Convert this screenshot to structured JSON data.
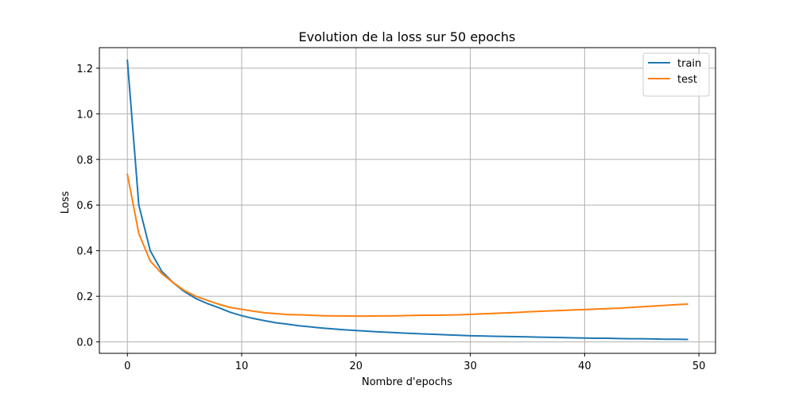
{
  "chart_data": {
    "type": "line",
    "title": "Evolution de la loss sur 50 epochs",
    "xlabel": "Nombre d'epochs",
    "ylabel": "Loss",
    "xlim": [
      -2.45,
      51.45
    ],
    "ylim": [
      -0.05,
      1.29
    ],
    "xticks": [
      0,
      10,
      20,
      30,
      40,
      50
    ],
    "yticks": [
      0.0,
      0.2,
      0.4,
      0.6,
      0.8,
      1.0,
      1.2
    ],
    "xtick_labels": [
      "0",
      "10",
      "20",
      "30",
      "40",
      "50"
    ],
    "ytick_labels": [
      "0.0",
      "0.2",
      "0.4",
      "0.6",
      "0.8",
      "1.0",
      "1.2"
    ],
    "grid": true,
    "legend_position": "top-right",
    "x": [
      0,
      1,
      2,
      3,
      4,
      5,
      6,
      7,
      8,
      9,
      10,
      11,
      12,
      13,
      14,
      15,
      16,
      17,
      18,
      19,
      20,
      21,
      22,
      23,
      24,
      25,
      26,
      27,
      28,
      29,
      30,
      31,
      32,
      33,
      34,
      35,
      36,
      37,
      38,
      39,
      40,
      41,
      42,
      43,
      44,
      45,
      46,
      47,
      48,
      49
    ],
    "series": [
      {
        "name": "train",
        "color": "#1f77b4",
        "values": [
          1.235,
          0.6,
          0.4,
          0.31,
          0.26,
          0.22,
          0.19,
          0.168,
          0.15,
          0.13,
          0.115,
          0.103,
          0.093,
          0.084,
          0.078,
          0.071,
          0.066,
          0.061,
          0.057,
          0.053,
          0.05,
          0.047,
          0.044,
          0.042,
          0.039,
          0.037,
          0.035,
          0.033,
          0.031,
          0.029,
          0.027,
          0.026,
          0.025,
          0.024,
          0.023,
          0.022,
          0.021,
          0.02,
          0.019,
          0.018,
          0.017,
          0.016,
          0.016,
          0.015,
          0.014,
          0.014,
          0.013,
          0.012,
          0.012,
          0.011
        ]
      },
      {
        "name": "test",
        "color": "#ff7f0e",
        "values": [
          0.735,
          0.475,
          0.355,
          0.3,
          0.26,
          0.225,
          0.2,
          0.182,
          0.165,
          0.151,
          0.143,
          0.135,
          0.128,
          0.124,
          0.12,
          0.119,
          0.117,
          0.115,
          0.114,
          0.114,
          0.113,
          0.113,
          0.114,
          0.114,
          0.115,
          0.116,
          0.117,
          0.117,
          0.118,
          0.119,
          0.121,
          0.123,
          0.125,
          0.127,
          0.129,
          0.132,
          0.134,
          0.136,
          0.138,
          0.14,
          0.142,
          0.144,
          0.146,
          0.148,
          0.151,
          0.154,
          0.157,
          0.16,
          0.163,
          0.166
        ]
      }
    ]
  }
}
